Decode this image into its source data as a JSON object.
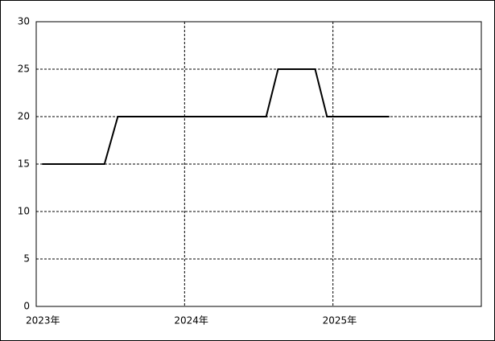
{
  "chart_data": {
    "type": "line",
    "x": [
      2023.04,
      2023.46,
      2023.55,
      2024.55,
      2024.63,
      2024.88,
      2024.96,
      2025.38
    ],
    "values": [
      15,
      15,
      20,
      20,
      25,
      25,
      20,
      20
    ],
    "color": "#000000",
    "xlim": [
      2023,
      2026
    ],
    "xticks": [
      {
        "value": 2023,
        "label": "2023年"
      },
      {
        "value": 2024,
        "label": "2024年"
      },
      {
        "value": 2025,
        "label": "2025年"
      }
    ],
    "ylim": [
      0,
      30
    ],
    "yticks": [
      0,
      5,
      10,
      15,
      20,
      25,
      30
    ],
    "grid": true
  }
}
